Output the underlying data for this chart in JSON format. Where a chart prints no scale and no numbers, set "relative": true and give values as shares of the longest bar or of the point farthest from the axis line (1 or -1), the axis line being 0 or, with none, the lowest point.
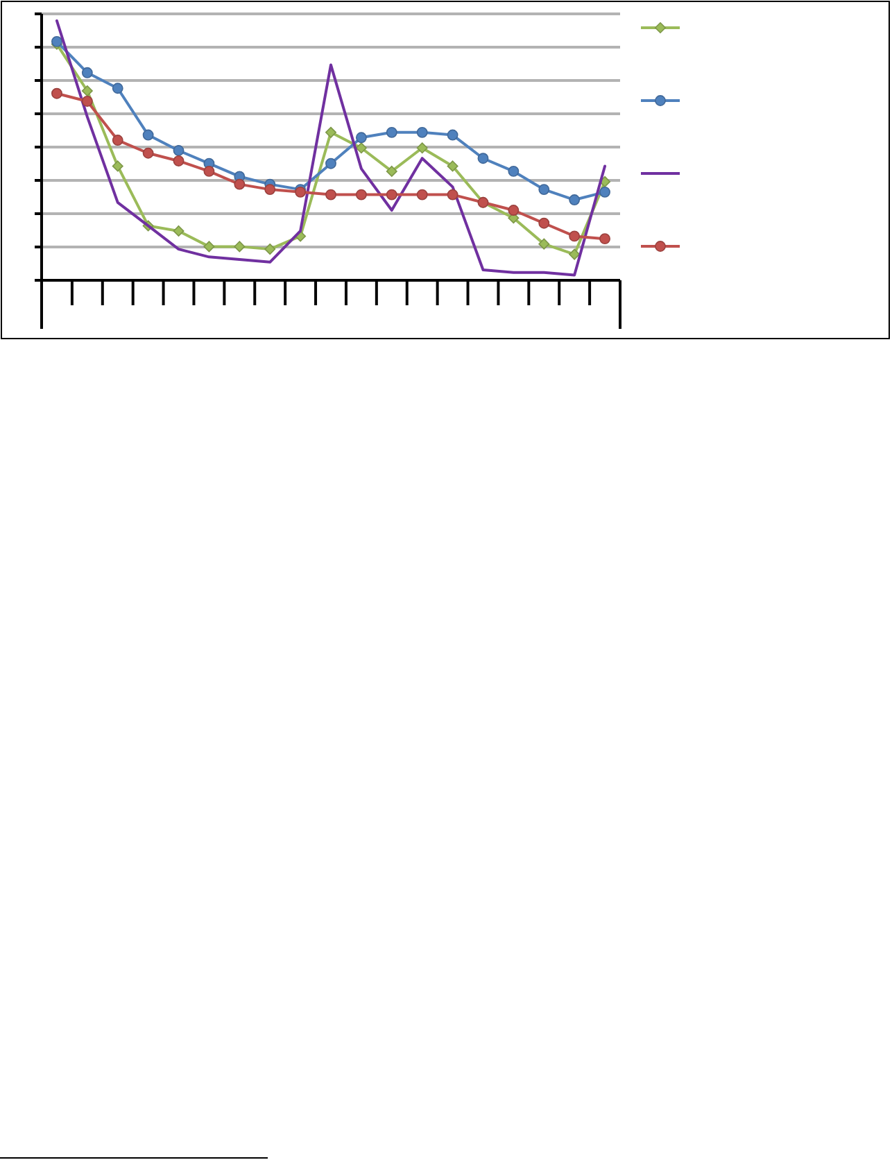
{
  "chart_data": {
    "type": "line",
    "relative": true,
    "categories": [
      null,
      null,
      null,
      null,
      null,
      null,
      null,
      null,
      null,
      null,
      null,
      null,
      null,
      null,
      null,
      null,
      null,
      null,
      null
    ],
    "series": [
      {
        "color": "#9bbb59",
        "marker": "diamond",
        "values": [
          0.91,
          0.73,
          0.44,
          0.21,
          0.19,
          0.13,
          0.13,
          0.12,
          0.17,
          0.57,
          0.51,
          0.42,
          0.51,
          0.44,
          0.3,
          0.24,
          0.14,
          0.1,
          0.38
        ]
      },
      {
        "color": "#4f81bd",
        "marker": "circle",
        "values": [
          0.92,
          0.8,
          0.74,
          0.56,
          0.5,
          0.45,
          0.4,
          0.37,
          0.35,
          0.45,
          0.55,
          0.57,
          0.57,
          0.56,
          0.47,
          0.42,
          0.35,
          0.31,
          0.34
        ]
      },
      {
        "color": "#7030a0",
        "marker": "none",
        "values": [
          1,
          0.63,
          0.3,
          0.21,
          0.12,
          0.09,
          0.08,
          0.07,
          0.19,
          0.83,
          0.43,
          0.27,
          0.47,
          0.36,
          0.04,
          0.03,
          0.03,
          0.02,
          0.44
        ]
      },
      {
        "color": "#c0504d",
        "marker": "circle",
        "values": [
          0.72,
          0.69,
          0.54,
          0.49,
          0.46,
          0.42,
          0.37,
          0.35,
          0.34,
          0.33,
          0.33,
          0.33,
          0.33,
          0.33,
          0.3,
          0.27,
          0.22,
          0.17,
          0.16
        ]
      }
    ],
    "grid": "y",
    "line_style": "solid"
  }
}
